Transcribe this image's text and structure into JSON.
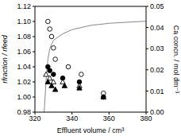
{
  "chart_data": {
    "type": "scatter",
    "x_label": "Effluent volume / cm³",
    "y_label": "rfraction / rfeed",
    "y2_label": "Ca concn. / mol dm⁻³",
    "xlim": [
      320,
      380
    ],
    "xticks": [
      320,
      340,
      360,
      380
    ],
    "ylim": [
      0.98,
      1.12
    ],
    "yticks": [
      0.98,
      {
        "value": 1,
        "label": "1.00"
      },
      1.02,
      1.04,
      1.06,
      1.08,
      {
        "value": 1.1,
        "label": "1.10"
      },
      1.12
    ],
    "y2lim": [
      0,
      0.05
    ],
    "y2ticks": [
      {
        "value": 0,
        "label": "0.00"
      },
      0.01,
      0.02,
      0.03,
      0.04,
      0.05
    ],
    "grid": false,
    "series": [
      {
        "type": "scatter",
        "marker": "open_circle",
        "color": "#000000",
        "x": [
          327,
          328,
          329,
          330,
          331,
          338,
          345,
          357
        ],
        "values": [
          1.1,
          1.09,
          1.08,
          1.065,
          1.05,
          1.04,
          1.03,
          1.005
        ]
      },
      {
        "type": "scatter",
        "marker": "filled_circle",
        "color": "#000000",
        "x": [
          327,
          328,
          330,
          335,
          344,
          357
        ],
        "values": [
          1.04,
          1.035,
          1.03,
          1.025,
          1.02,
          1.0
        ]
      },
      {
        "type": "scatter",
        "marker": "open_triangle",
        "color": "#000000",
        "x": [
          326,
          328,
          330,
          335,
          344
        ],
        "values": [
          1.03,
          1.025,
          1.02,
          1.02,
          1.015
        ]
      },
      {
        "type": "scatter",
        "marker": "filled_triangle",
        "color": "#000000",
        "x": [
          327,
          329,
          331,
          336,
          344,
          357
        ],
        "values": [
          1.02,
          1.015,
          1.01,
          1.015,
          1.012,
          1.0
        ]
      },
      {
        "type": "line",
        "axis": "y2",
        "line_style": "solid",
        "color": "#888888",
        "x": [
          325,
          326,
          327,
          328,
          330,
          335,
          340,
          350,
          360,
          380
        ],
        "values": [
          0,
          0.015,
          0.025,
          0.03,
          0.034,
          0.037,
          0.039,
          0.041,
          0.042,
          0.043
        ]
      }
    ]
  }
}
